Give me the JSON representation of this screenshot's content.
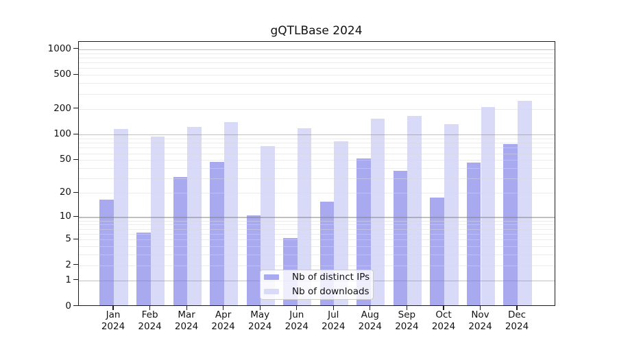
{
  "title": "gQTLBase 2024",
  "year_label": "2024",
  "y_tick_labels": [
    "0",
    "1",
    "2",
    "5",
    "10",
    "20",
    "50",
    "100",
    "200",
    "500",
    "1000"
  ],
  "colors": {
    "bar_distinct_ips": "#a9a9f0",
    "bar_downloads": "#d9d9f8",
    "grid_major": "#c0c0c0",
    "grid_minor": "#ececec",
    "axis": "#1a1a1a",
    "legend_border": "#cccccc"
  },
  "chart_data": {
    "type": "bar",
    "title": "gQTLBase 2024",
    "categories": [
      "Jan",
      "Feb",
      "Mar",
      "Apr",
      "May",
      "Jun",
      "Jul",
      "Aug",
      "Sep",
      "Oct",
      "Nov",
      "Dec"
    ],
    "category_year": "2024",
    "series": [
      {
        "name": "Nb of distinct IPs",
        "color": "#a9a9f0",
        "values": [
          16,
          6,
          30,
          46,
          10,
          5,
          15,
          50,
          36,
          17,
          45,
          75
        ]
      },
      {
        "name": "Nb of downloads",
        "color": "#d9d9f8",
        "values": [
          113,
          91,
          119,
          136,
          71,
          115,
          81,
          149,
          160,
          127,
          202,
          241
        ]
      }
    ],
    "xlabel": "",
    "ylabel": "",
    "yscale": "log10(1+x)",
    "yticks": [
      0,
      1,
      2,
      5,
      10,
      20,
      50,
      100,
      200,
      500,
      1000
    ],
    "ylim": [
      0,
      1190
    ],
    "grid": "major and minor horizontal lines, drawn above bars",
    "legend_position": "lower center"
  }
}
